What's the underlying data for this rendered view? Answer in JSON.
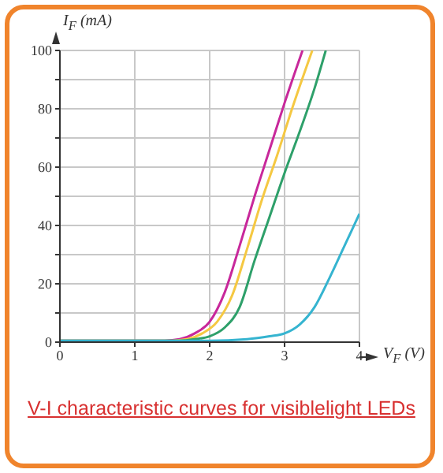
{
  "chart_data": {
    "type": "line",
    "title": "V-I characteristic curves for visiblelight LEDs",
    "xlabel": "V$_{F}$ (V)",
    "ylabel": "I$_{F}$ (mA)",
    "xlim": [
      0,
      4
    ],
    "xticks": [
      0,
      1,
      2,
      3,
      4
    ],
    "ylim": [
      0,
      100
    ],
    "yticks": [
      0,
      {
        "value": 10,
        "label": null
      },
      20,
      {
        "value": 30,
        "label": null
      },
      40,
      {
        "value": 50,
        "label": null
      },
      60,
      {
        "value": 70,
        "label": null
      },
      80,
      {
        "value": 90,
        "label": null
      },
      100
    ],
    "grid": true,
    "marker": "none",
    "line_style": "solid",
    "series": [
      {
        "color": "#c8289b",
        "x": [
          0,
          1.4,
          1.6,
          1.8,
          2,
          2.2,
          2.4,
          2.6,
          2.8,
          3,
          3.24
        ],
        "values": [
          0.5,
          0.5,
          1,
          3,
          7,
          17,
          33,
          50,
          66,
          82,
          100
        ]
      },
      {
        "color": "#f5c842",
        "x": [
          0,
          1.5,
          1.7,
          1.9,
          2.1,
          2.3,
          2.5,
          2.7,
          2.9,
          3.1,
          3.37
        ],
        "values": [
          0.5,
          0.5,
          1,
          3,
          7,
          16,
          32,
          49,
          64,
          80,
          100
        ]
      },
      {
        "color": "#2ea06a",
        "x": [
          0,
          1.6,
          1.8,
          2,
          2.2,
          2.4,
          2.6,
          2.8,
          3,
          3.2,
          3.4,
          3.55
        ],
        "values": [
          0.5,
          0.5,
          1,
          2,
          5,
          12,
          28,
          43,
          58,
          72,
          87,
          100
        ]
      },
      {
        "color": "#35b4d0",
        "x": [
          0,
          2,
          2.5,
          2.8,
          3,
          3.2,
          3.4,
          3.6,
          3.8,
          4
        ],
        "values": [
          0.5,
          0.5,
          1,
          2,
          3,
          6,
          12,
          22,
          33,
          44
        ]
      }
    ]
  }
}
